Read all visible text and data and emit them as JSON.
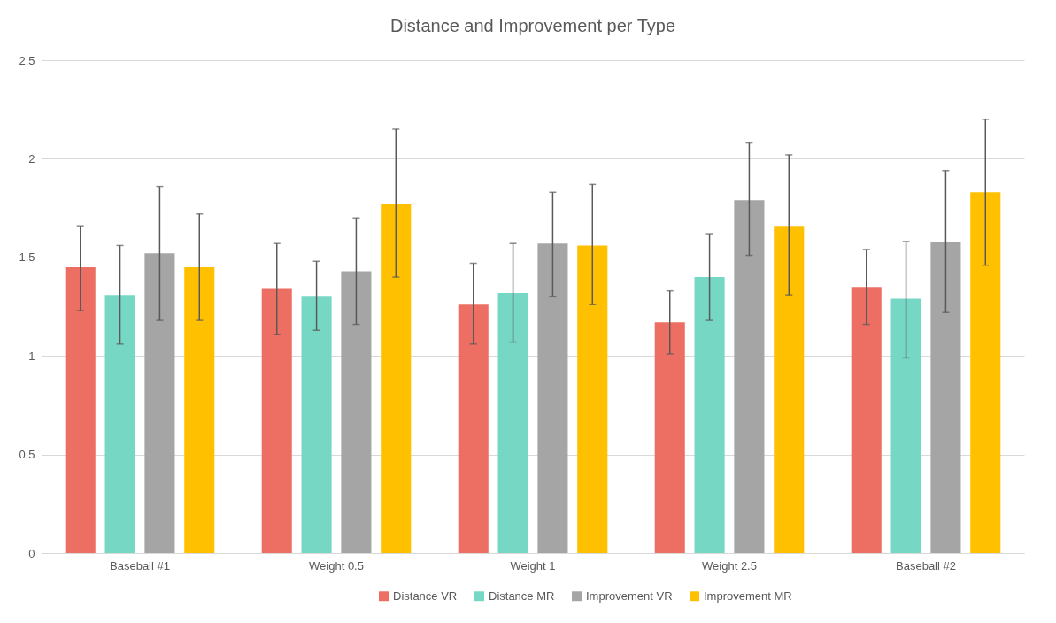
{
  "chart_data": {
    "type": "bar",
    "title": "Distance and Improvement per Type",
    "categories": [
      "Baseball #1",
      "Weight 0.5",
      "Weight 1",
      "Weight 2.5",
      "Baseball #2"
    ],
    "series": [
      {
        "name": "Distance VR",
        "color": "#ed6f64",
        "values": [
          1.45,
          1.34,
          1.26,
          1.17,
          1.35
        ],
        "errors": [
          [
            1.23,
            1.66
          ],
          [
            1.11,
            1.57
          ],
          [
            1.06,
            1.47
          ],
          [
            1.01,
            1.33
          ],
          [
            1.16,
            1.54
          ]
        ]
      },
      {
        "name": "Distance MR",
        "color": "#76d7c4",
        "values": [
          1.31,
          1.3,
          1.32,
          1.4,
          1.29
        ],
        "errors": [
          [
            1.06,
            1.56
          ],
          [
            1.13,
            1.48
          ],
          [
            1.07,
            1.57
          ],
          [
            1.18,
            1.62
          ],
          [
            0.99,
            1.58
          ]
        ]
      },
      {
        "name": "Improvement VR",
        "color": "#a5a5a5",
        "values": [
          1.52,
          1.43,
          1.57,
          1.79,
          1.58
        ],
        "errors": [
          [
            1.18,
            1.86
          ],
          [
            1.16,
            1.7
          ],
          [
            1.3,
            1.83
          ],
          [
            1.51,
            2.08
          ],
          [
            1.22,
            1.94
          ]
        ]
      },
      {
        "name": "Improvement MR",
        "color": "#ffc000",
        "values": [
          1.45,
          1.77,
          1.56,
          1.66,
          1.83
        ],
        "errors": [
          [
            1.18,
            1.72
          ],
          [
            1.4,
            2.15
          ],
          [
            1.26,
            1.87
          ],
          [
            1.31,
            2.02
          ],
          [
            1.46,
            2.2
          ]
        ]
      }
    ],
    "ylim": [
      0,
      2.5
    ],
    "yticks": [
      0,
      0.5,
      1,
      1.5,
      2,
      2.5
    ],
    "grid": "y",
    "legend": "bottom"
  }
}
